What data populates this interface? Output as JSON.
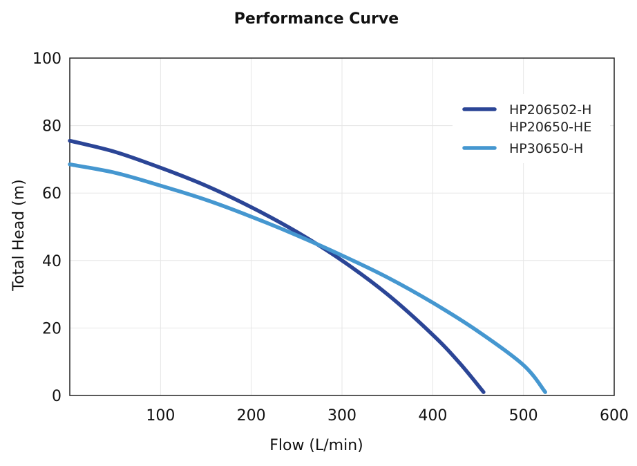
{
  "chart_data": {
    "type": "line",
    "title": "Performance Curve",
    "xlabel": "Flow (L/min)",
    "ylabel": "Total Head (m)",
    "xlim": [
      0,
      600
    ],
    "ylim": [
      0,
      100
    ],
    "x_ticks": [
      100,
      200,
      300,
      400,
      500,
      600
    ],
    "x_tick_labels": [
      "100",
      "200",
      "300",
      "400",
      "500",
      "600"
    ],
    "y_ticks": [
      0,
      20,
      40,
      60,
      80,
      100
    ],
    "y_tick_labels": [
      "0",
      "20",
      "40",
      "60",
      "80",
      "100"
    ],
    "grid": true,
    "legend_position": "top-right",
    "series": [
      {
        "name": "HP206502-H\nHP20650-HE",
        "legend_lines": [
          "HP206502-H",
          "HP20650-HE"
        ],
        "color": "#2b4596",
        "x": [
          0,
          50,
          100,
          150,
          200,
          250,
          300,
          350,
          400,
          430,
          456
        ],
        "y": [
          75.5,
          72.2,
          67.5,
          62.2,
          55.8,
          48.5,
          40,
          30,
          18,
          9.5,
          1
        ]
      },
      {
        "name": "HP30650-H",
        "legend_lines": [
          "HP30650-H"
        ],
        "color": "#4597d0",
        "x": [
          0,
          50,
          100,
          150,
          200,
          250,
          300,
          350,
          400,
          450,
          500,
          524
        ],
        "y": [
          68.5,
          66,
          62.2,
          58,
          53,
          47.5,
          41.5,
          35,
          27.5,
          19,
          9,
          1
        ]
      }
    ]
  }
}
